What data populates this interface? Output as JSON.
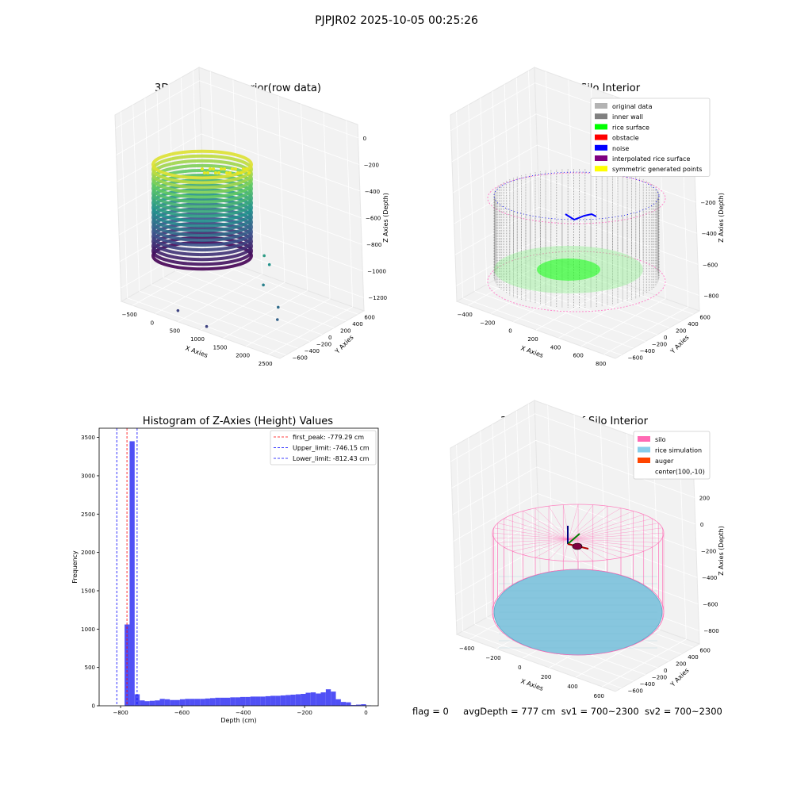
{
  "figure": {
    "suptitle": "PJPJR02 2025-10-05 00:25:26",
    "footer": {
      "flag": "flag = 0",
      "avg_depth": "avgDepth = 777 cm",
      "sv1": "sv1 = 700~2300",
      "sv2": "sv2 = 700~2300"
    }
  },
  "chart_data": [
    {
      "type": "scatter",
      "title": "3D Plot of Silo Interior(row data)",
      "xlabel": "X Axies",
      "ylabel": "Y Axies",
      "zlabel": "Z Axies (Depth)",
      "xticks": [
        "−500",
        "0",
        "500",
        "1000",
        "1500",
        "2000",
        "2500"
      ],
      "yticks": [
        "−600",
        "−400",
        "−200",
        "0",
        "200",
        "400",
        "600"
      ],
      "zticks": [
        "0",
        "−200",
        "−400",
        "−600",
        "−800",
        "−1000",
        "−1200"
      ],
      "colormap": "viridis",
      "outliers": [
        {
          "x": 1600,
          "y": -100,
          "z": -850
        },
        {
          "x": 1700,
          "y": -100,
          "z": -900
        },
        {
          "x": 1750,
          "y": -250,
          "z": -1000
        },
        {
          "x": 2100,
          "y": -300,
          "z": -1100
        },
        {
          "x": 2200,
          "y": -400,
          "z": -1150
        },
        {
          "x": 300,
          "y": -500,
          "z": -1300
        },
        {
          "x": 1000,
          "y": -600,
          "z": -1300
        }
      ]
    },
    {
      "type": "scatter",
      "title": "3D classify of Silo Interior",
      "xlabel": "X Axies",
      "ylabel": "Y Axies",
      "zlabel": "Z Axies (Depth)",
      "xticks": [
        "−400",
        "−200",
        "0",
        "200",
        "400",
        "600",
        "800"
      ],
      "yticks": [
        "−600",
        "−400",
        "−200",
        "0",
        "200",
        "400",
        "600"
      ],
      "zticks": [
        "200",
        "0",
        "−200",
        "−400",
        "−600",
        "−800"
      ],
      "legend": [
        {
          "label": "original data",
          "color": "#b3b3b3"
        },
        {
          "label": "inner wall",
          "color": "#808080"
        },
        {
          "label": "rice surface",
          "color": "#00ff00"
        },
        {
          "label": "obstacle",
          "color": "#ff0000"
        },
        {
          "label": "noise",
          "color": "#0000ff"
        },
        {
          "label": "interpolated rice surface",
          "color": "#800080"
        },
        {
          "label": "symmetric generated points",
          "color": "#ffff00"
        }
      ]
    },
    {
      "type": "bar",
      "title": "Histogram of Z-Axies (Height) Values",
      "xlabel": "Depth (cm)",
      "ylabel": "Frequency",
      "xlim": [
        -870,
        40
      ],
      "ylim": [
        0,
        3620
      ],
      "xticks": [
        -800,
        -600,
        -400,
        -200,
        0
      ],
      "xtick_labels": [
        "−800",
        "−600",
        "−400",
        "−200",
        "0"
      ],
      "yticks": [
        0,
        500,
        1000,
        1500,
        2000,
        2500,
        3000,
        3500
      ],
      "bar_color": "#5050f5",
      "bin_width": 16.4,
      "bins": [
        {
          "x": -787.0,
          "v": 1060
        },
        {
          "x": -770.6,
          "v": 3450
        },
        {
          "x": -754.2,
          "v": 150
        },
        {
          "x": -737.8,
          "v": 70
        },
        {
          "x": -721.4,
          "v": 60
        },
        {
          "x": -705.0,
          "v": 65
        },
        {
          "x": -688.6,
          "v": 70
        },
        {
          "x": -672.2,
          "v": 90
        },
        {
          "x": -655.8,
          "v": 85
        },
        {
          "x": -639.4,
          "v": 75
        },
        {
          "x": -623.0,
          "v": 75
        },
        {
          "x": -606.6,
          "v": 85
        },
        {
          "x": -590.2,
          "v": 90
        },
        {
          "x": -573.8,
          "v": 90
        },
        {
          "x": -557.4,
          "v": 90
        },
        {
          "x": -541.0,
          "v": 90
        },
        {
          "x": -524.6,
          "v": 95
        },
        {
          "x": -508.2,
          "v": 100
        },
        {
          "x": -491.8,
          "v": 105
        },
        {
          "x": -475.4,
          "v": 105
        },
        {
          "x": -459.0,
          "v": 105
        },
        {
          "x": -442.6,
          "v": 110
        },
        {
          "x": -426.2,
          "v": 110
        },
        {
          "x": -409.8,
          "v": 115
        },
        {
          "x": -393.4,
          "v": 115
        },
        {
          "x": -377.0,
          "v": 120
        },
        {
          "x": -360.6,
          "v": 120
        },
        {
          "x": -344.2,
          "v": 120
        },
        {
          "x": -327.8,
          "v": 125
        },
        {
          "x": -311.4,
          "v": 130
        },
        {
          "x": -295.0,
          "v": 130
        },
        {
          "x": -278.6,
          "v": 135
        },
        {
          "x": -262.2,
          "v": 140
        },
        {
          "x": -245.8,
          "v": 145
        },
        {
          "x": -229.4,
          "v": 150
        },
        {
          "x": -213.0,
          "v": 155
        },
        {
          "x": -196.6,
          "v": 170
        },
        {
          "x": -180.2,
          "v": 175
        },
        {
          "x": -163.8,
          "v": 160
        },
        {
          "x": -147.4,
          "v": 175
        },
        {
          "x": -131.0,
          "v": 215
        },
        {
          "x": -114.6,
          "v": 185
        },
        {
          "x": -98.2,
          "v": 85
        },
        {
          "x": -81.8,
          "v": 50
        },
        {
          "x": -65.4,
          "v": 45
        },
        {
          "x": -49.0,
          "v": 10
        },
        {
          "x": -32.6,
          "v": 15
        },
        {
          "x": -16.2,
          "v": 20
        },
        {
          "x": 0.2,
          "v": 5
        }
      ],
      "vlines": [
        {
          "label": "first_peak: -779.29 cm",
          "x": -779.29,
          "color": "#ff0000"
        },
        {
          "label": "Upper_limit: -746.15 cm",
          "x": -746.15,
          "color": "#0000ff"
        },
        {
          "label": "Lower_limit: -812.43 cm",
          "x": -812.43,
          "color": "#0000ff"
        }
      ]
    },
    {
      "type": "area",
      "title": "3D simulation of Silo Interior",
      "xlabel": "X Axies",
      "ylabel": "Y Axies",
      "zlabel": "Z Axies (Depth)",
      "xticks": [
        "−400",
        "−200",
        "0",
        "200",
        "400",
        "600"
      ],
      "yticks": [
        "−600",
        "−400",
        "−200",
        "0",
        "200",
        "400",
        "600"
      ],
      "zticks": [
        "400",
        "200",
        "0",
        "−200",
        "−400",
        "−600",
        "−800"
      ],
      "legend": [
        {
          "label": "silo",
          "color": "#ff69b4"
        },
        {
          "label": "rice simulation",
          "color": "#87ceeb"
        },
        {
          "label": "auger",
          "color": "#ff4500"
        },
        {
          "label": "center(100,-10)",
          "color": ""
        }
      ]
    }
  ]
}
